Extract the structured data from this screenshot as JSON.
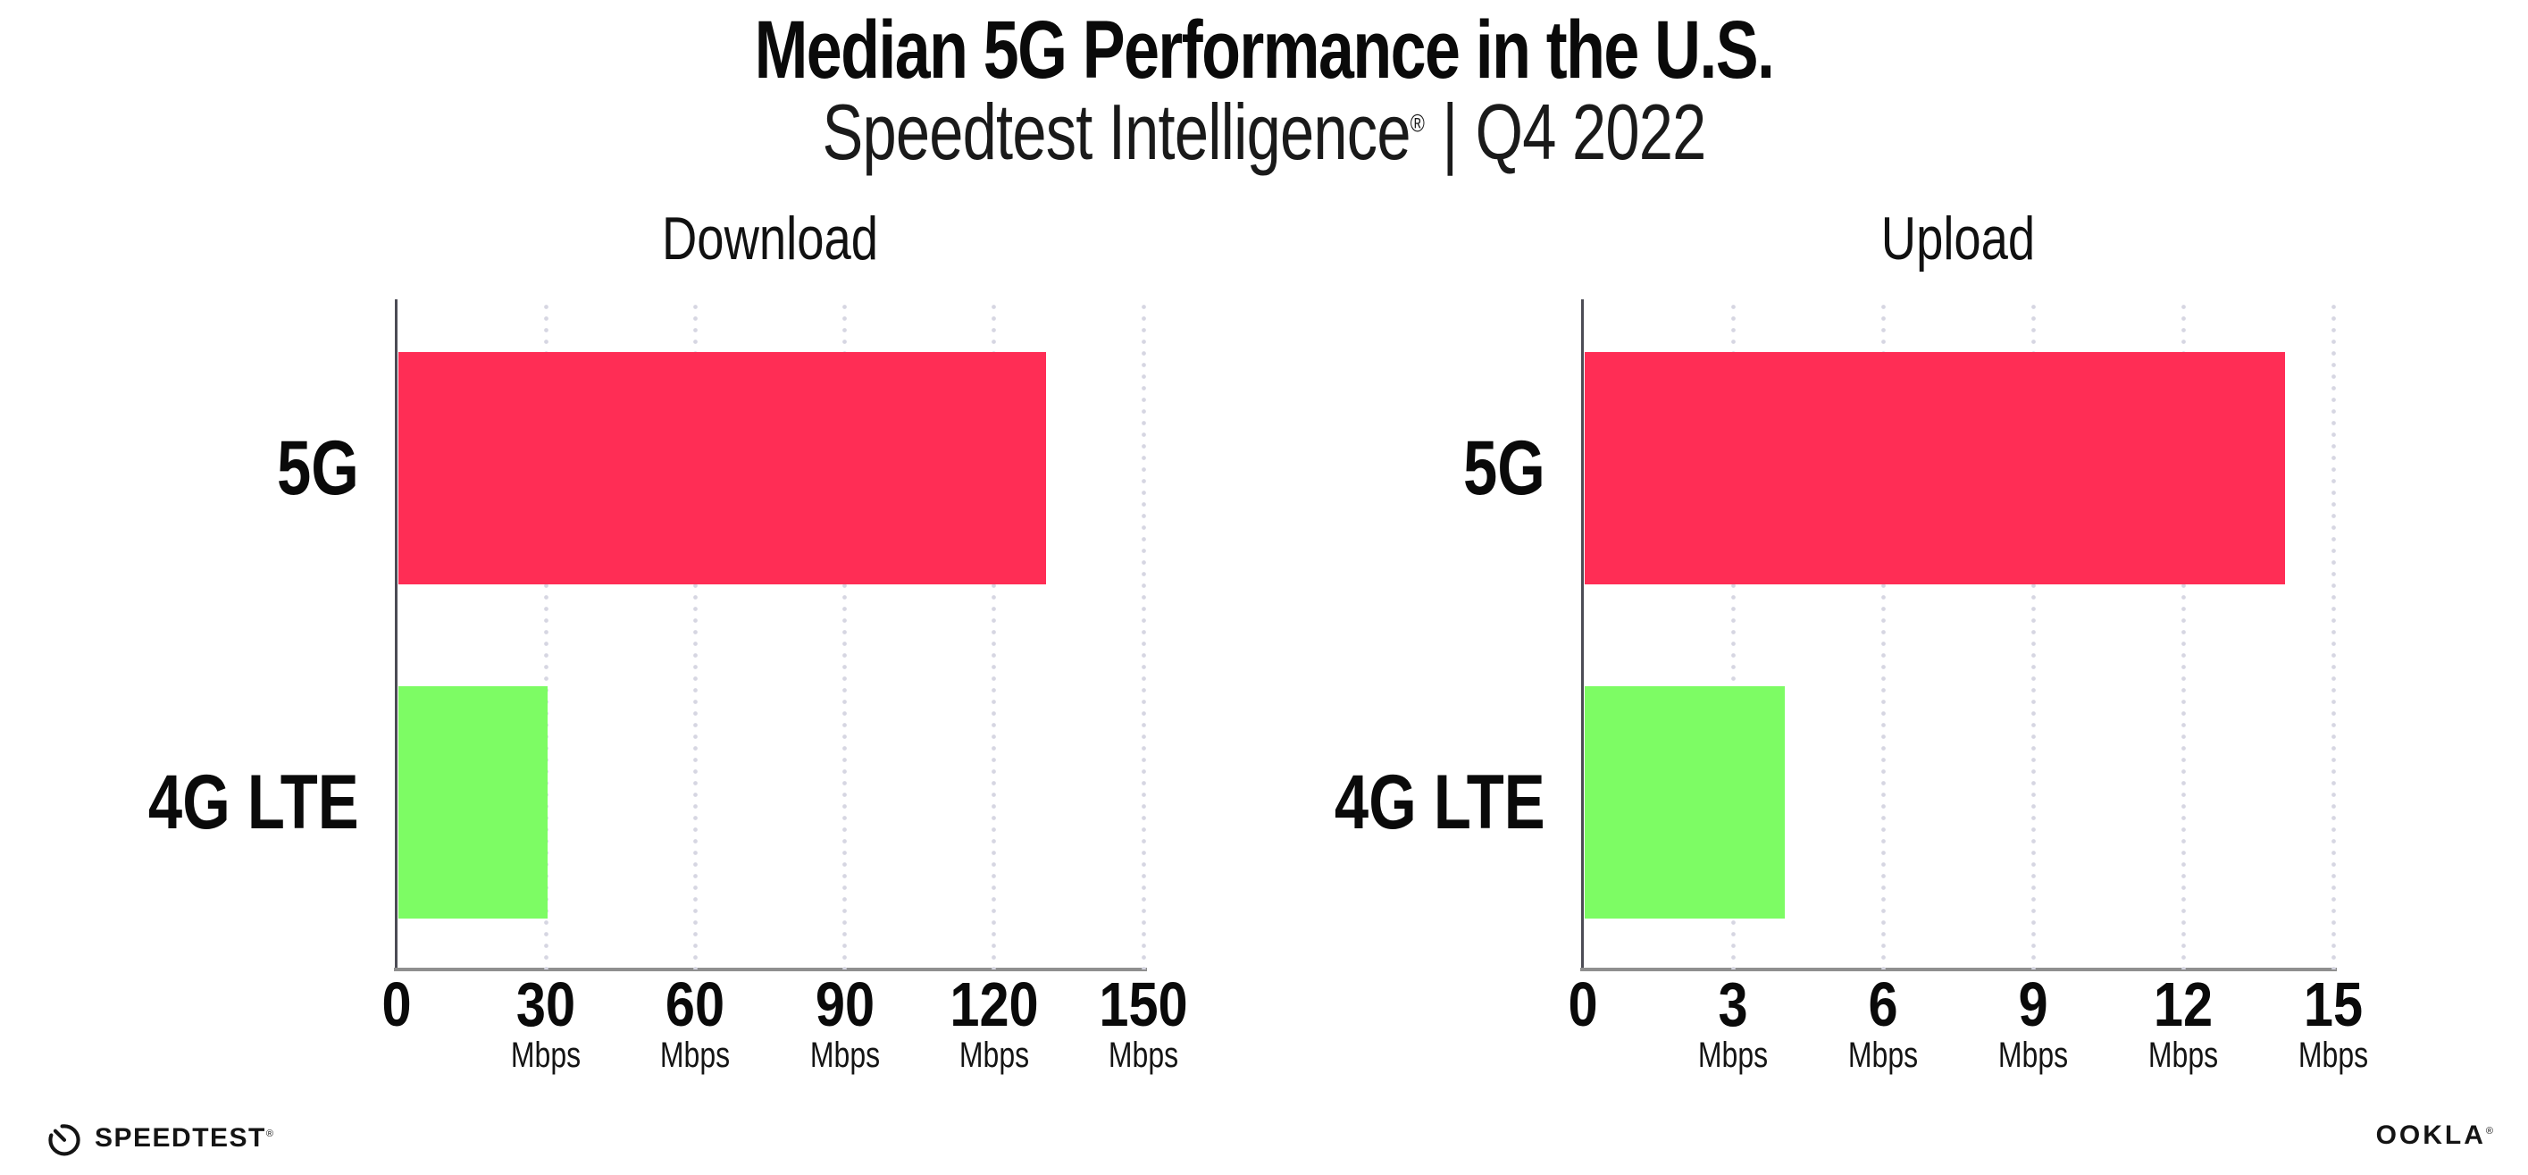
{
  "header": {
    "title": "Median 5G Performance in the U.S.",
    "subtitle_brand": "Speedtest Intelligence",
    "subtitle_mark": "®",
    "subtitle_separator": "|",
    "subtitle_period": "Q4 2022"
  },
  "chart_data": [
    {
      "type": "bar",
      "orientation": "horizontal",
      "title": "Download",
      "categories": [
        "5G",
        "4G LTE"
      ],
      "values": [
        130,
        30
      ],
      "unit": "Mbps",
      "xlim": [
        0,
        150
      ],
      "xticks": [
        0,
        30,
        60,
        90,
        120,
        150
      ],
      "tick_unit": "Mbps",
      "unit_on_zero_tick": false,
      "bar_colors": [
        "#FF2D55",
        "#7DFC64"
      ],
      "grid": "dotted-vertical",
      "legend": "none"
    },
    {
      "type": "bar",
      "orientation": "horizontal",
      "title": "Upload",
      "categories": [
        "5G",
        "4G LTE"
      ],
      "values": [
        14,
        4
      ],
      "unit": "Mbps",
      "xlim": [
        0,
        15
      ],
      "xticks": [
        0,
        3,
        6,
        9,
        12,
        15
      ],
      "tick_unit": "Mbps",
      "unit_on_zero_tick": false,
      "bar_colors": [
        "#FF2D55",
        "#7DFC64"
      ],
      "grid": "dotted-vertical",
      "legend": "none"
    }
  ],
  "footer": {
    "speedtest_label": "SPEEDTEST",
    "speedtest_mark": "®",
    "ookla_label": "OOKLA",
    "ookla_mark": "®"
  },
  "colors": {
    "bar_5g": "#FF2D55",
    "bar_4g_lte": "#7DFC64",
    "gridline": "#D6D6E2",
    "x_axis": "#8F8F8F",
    "y_axis": "#4C4C55",
    "text": "#0A0A0A"
  }
}
